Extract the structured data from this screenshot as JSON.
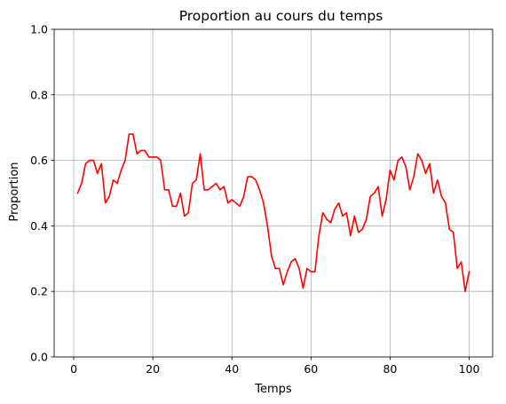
{
  "chart_data": {
    "type": "line",
    "title": "Proportion au cours du temps",
    "xlabel": "Temps",
    "ylabel": "Proportion",
    "xlim": [
      -4.95,
      105.95
    ],
    "ylim": [
      0.0,
      1.0
    ],
    "xticks": [
      0,
      20,
      40,
      60,
      80,
      100
    ],
    "yticks": [
      0.0,
      0.2,
      0.4,
      0.6,
      0.8,
      1.0
    ],
    "xtick_labels": [
      "0",
      "20",
      "40",
      "60",
      "80",
      "100"
    ],
    "ytick_labels": [
      "0.0",
      "0.2",
      "0.4",
      "0.6",
      "0.8",
      "1.0"
    ],
    "grid": true,
    "legend": "none",
    "series": [
      {
        "color": "#ff0000",
        "x": [
          1,
          2,
          3,
          4,
          5,
          6,
          7,
          8,
          9,
          10,
          11,
          12,
          13,
          14,
          15,
          16,
          17,
          18,
          19,
          20,
          21,
          22,
          23,
          24,
          25,
          26,
          27,
          28,
          29,
          30,
          31,
          32,
          33,
          34,
          35,
          36,
          37,
          38,
          39,
          40,
          41,
          42,
          43,
          44,
          45,
          46,
          47,
          48,
          49,
          50,
          51,
          52,
          53,
          54,
          55,
          56,
          57,
          58,
          59,
          60,
          61,
          62,
          63,
          64,
          65,
          66,
          67,
          68,
          69,
          70,
          71,
          72,
          73,
          74,
          75,
          76,
          77,
          78,
          79,
          80,
          81,
          82,
          83,
          84,
          85,
          86,
          87,
          88,
          89,
          90,
          91,
          92,
          93,
          94,
          95,
          96,
          97,
          98,
          99,
          100
        ],
        "y": [
          0.5,
          0.53,
          0.59,
          0.6,
          0.6,
          0.56,
          0.59,
          0.47,
          0.49,
          0.54,
          0.53,
          0.57,
          0.6,
          0.68,
          0.68,
          0.62,
          0.63,
          0.63,
          0.61,
          0.61,
          0.61,
          0.6,
          0.51,
          0.51,
          0.46,
          0.46,
          0.5,
          0.43,
          0.44,
          0.53,
          0.54,
          0.62,
          0.51,
          0.51,
          0.52,
          0.53,
          0.51,
          0.52,
          0.47,
          0.48,
          0.47,
          0.46,
          0.49,
          0.55,
          0.55,
          0.54,
          0.51,
          0.47,
          0.4,
          0.31,
          0.27,
          0.27,
          0.22,
          0.26,
          0.29,
          0.3,
          0.27,
          0.21,
          0.27,
          0.26,
          0.26,
          0.37,
          0.44,
          0.42,
          0.41,
          0.45,
          0.47,
          0.43,
          0.44,
          0.37,
          0.43,
          0.38,
          0.39,
          0.42,
          0.49,
          0.5,
          0.52,
          0.43,
          0.48,
          0.57,
          0.54,
          0.6,
          0.61,
          0.58,
          0.51,
          0.55,
          0.62,
          0.6,
          0.56,
          0.59,
          0.5,
          0.54,
          0.49,
          0.47,
          0.39,
          0.38,
          0.27,
          0.29,
          0.2,
          0.26
        ]
      }
    ]
  }
}
